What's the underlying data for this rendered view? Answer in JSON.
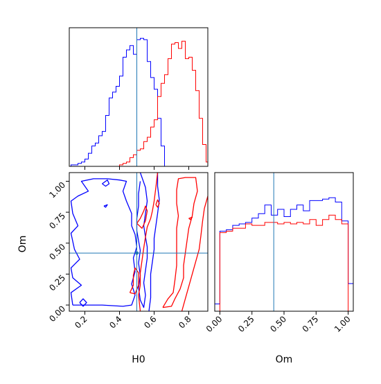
{
  "chart_data": {
    "type": "corner",
    "parameters": [
      "H0",
      "Om"
    ],
    "truths": {
      "H0": 0.5,
      "Om": 0.42
    },
    "colors": {
      "blue": "#0000ff",
      "red": "#ff0000",
      "truth": "#1f77b4"
    },
    "panels": [
      {
        "id": "h0-histogram",
        "type": "step-histogram",
        "xlim": [
          0.11,
          0.91
        ],
        "x_ticks": [
          0.2,
          0.4,
          0.6,
          0.8
        ],
        "x_tick_labels_shown": false,
        "y_ticks_shown": false,
        "y_max": 1.0,
        "series": [
          {
            "color": "blue",
            "edges": [
              0.1,
              0.12,
              0.14,
              0.16,
              0.18,
              0.2,
              0.22,
              0.24,
              0.26,
              0.28,
              0.3,
              0.32,
              0.34,
              0.36,
              0.38,
              0.4,
              0.42,
              0.44,
              0.46,
              0.48,
              0.5,
              0.52,
              0.54,
              0.56,
              0.58,
              0.6,
              0.62,
              0.64,
              0.66,
              0.68
            ],
            "values": [
              0.0,
              0.01,
              0.01,
              0.02,
              0.03,
              0.05,
              0.09,
              0.14,
              0.16,
              0.21,
              0.24,
              0.35,
              0.47,
              0.51,
              0.55,
              0.62,
              0.75,
              0.8,
              0.83,
              0.77,
              0.87,
              0.88,
              0.87,
              0.72,
              0.61,
              0.53,
              0.33,
              0.14,
              0.0
            ]
          },
          {
            "color": "red",
            "edges": [
              0.4,
              0.42,
              0.44,
              0.46,
              0.48,
              0.5,
              0.52,
              0.54,
              0.56,
              0.58,
              0.6,
              0.62,
              0.64,
              0.66,
              0.68,
              0.7,
              0.72,
              0.74,
              0.76,
              0.78,
              0.8,
              0.82,
              0.84,
              0.86,
              0.88,
              0.9,
              0.92
            ],
            "values": [
              0.01,
              0.02,
              0.03,
              0.06,
              0.08,
              0.11,
              0.12,
              0.17,
              0.2,
              0.27,
              0.32,
              0.48,
              0.57,
              0.63,
              0.74,
              0.84,
              0.85,
              0.81,
              0.86,
              0.74,
              0.75,
              0.66,
              0.52,
              0.33,
              0.15,
              0.03
            ]
          }
        ]
      },
      {
        "id": "om-histogram",
        "type": "step-histogram",
        "xlim": [
          -0.04,
          1.04
        ],
        "x_ticks": [
          0.0,
          0.25,
          0.5,
          0.75,
          1.0
        ],
        "x_tick_labels": [
          "0.00",
          "0.25",
          "0.50",
          "0.75",
          "1.00"
        ],
        "x_label": "Om",
        "y_ticks_shown": false,
        "y_max": 1.0,
        "series": [
          {
            "color": "blue",
            "edges": [
              -0.05,
              0.0,
              0.05,
              0.1,
              0.15,
              0.2,
              0.25,
              0.3,
              0.35,
              0.4,
              0.45,
              0.5,
              0.55,
              0.6,
              0.65,
              0.7,
              0.75,
              0.8,
              0.85,
              0.9,
              0.95,
              1.0,
              1.05
            ],
            "values": [
              0.05,
              0.55,
              0.56,
              0.59,
              0.6,
              0.61,
              0.64,
              0.67,
              0.73,
              0.66,
              0.7,
              0.65,
              0.7,
              0.73,
              0.69,
              0.76,
              0.76,
              0.77,
              0.78,
              0.75,
              0.62,
              0.19
            ]
          },
          {
            "color": "red",
            "edges": [
              0.0,
              0.05,
              0.1,
              0.15,
              0.2,
              0.25,
              0.3,
              0.35,
              0.4,
              0.45,
              0.5,
              0.55,
              0.6,
              0.65,
              0.7,
              0.75,
              0.8,
              0.85,
              0.9,
              0.95,
              1.0
            ],
            "values": [
              0.54,
              0.55,
              0.57,
              0.57,
              0.6,
              0.59,
              0.59,
              0.61,
              0.61,
              0.6,
              0.61,
              0.6,
              0.61,
              0.6,
              0.63,
              0.59,
              0.63,
              0.66,
              0.63,
              0.6
            ]
          }
        ]
      },
      {
        "id": "om-vs-h0-contours",
        "type": "contour",
        "xlim": [
          0.11,
          0.91
        ],
        "ylim": [
          -0.05,
          1.07
        ],
        "x_ticks": [
          0.2,
          0.4,
          0.6,
          0.8
        ],
        "x_tick_labels": [
          "0.2",
          "0.4",
          "0.6",
          "0.8"
        ],
        "y_ticks": [
          0.0,
          0.25,
          0.5,
          0.75,
          1.0
        ],
        "y_tick_labels": [
          "0.00",
          "0.25",
          "0.50",
          "0.75",
          "1.00"
        ],
        "x_label": "H0",
        "y_label": "Om",
        "contours": [
          {
            "color": "blue",
            "level": "outer",
            "points": [
              [
                0.13,
                0.0
              ],
              [
                0.3,
                0.0
              ],
              [
                0.42,
                -0.01
              ],
              [
                0.47,
                0.0
              ],
              [
                0.49,
                0.08
              ],
              [
                0.47,
                0.17
              ],
              [
                0.49,
                0.27
              ],
              [
                0.48,
                0.38
              ],
              [
                0.5,
                0.47
              ],
              [
                0.49,
                0.57
              ],
              [
                0.47,
                0.64
              ],
              [
                0.47,
                0.74
              ],
              [
                0.44,
                0.84
              ],
              [
                0.42,
                0.92
              ],
              [
                0.44,
                1.0
              ],
              [
                0.4,
                1.01
              ],
              [
                0.33,
                1.02
              ],
              [
                0.25,
                1.02
              ],
              [
                0.18,
                1.0
              ],
              [
                0.22,
                0.92
              ],
              [
                0.16,
                0.88
              ],
              [
                0.12,
                0.84
              ],
              [
                0.13,
                0.74
              ],
              [
                0.16,
                0.64
              ],
              [
                0.12,
                0.58
              ],
              [
                0.14,
                0.45
              ],
              [
                0.17,
                0.37
              ],
              [
                0.12,
                0.3
              ],
              [
                0.13,
                0.22
              ],
              [
                0.18,
                0.16
              ],
              [
                0.12,
                0.1
              ],
              [
                0.13,
                0.0
              ]
            ]
          },
          {
            "color": "blue",
            "level": "inner",
            "points": [
              [
                0.52,
                1.07
              ],
              [
                0.55,
                0.95
              ],
              [
                0.56,
                0.84
              ],
              [
                0.55,
                0.74
              ],
              [
                0.54,
                0.64
              ],
              [
                0.55,
                0.55
              ],
              [
                0.56,
                0.47
              ],
              [
                0.56,
                0.38
              ],
              [
                0.55,
                0.28
              ],
              [
                0.54,
                0.18
              ],
              [
                0.55,
                0.08
              ],
              [
                0.54,
                -0.02
              ],
              [
                0.52,
                0.04
              ],
              [
                0.51,
                0.14
              ],
              [
                0.52,
                0.24
              ],
              [
                0.51,
                0.34
              ],
              [
                0.52,
                0.44
              ],
              [
                0.51,
                0.52
              ],
              [
                0.5,
                0.6
              ],
              [
                0.5,
                0.7
              ],
              [
                0.51,
                0.8
              ],
              [
                0.51,
                0.9
              ],
              [
                0.52,
                1.0
              ]
            ]
          },
          {
            "color": "blue",
            "level": "right",
            "points": [
              [
                0.62,
                1.07
              ],
              [
                0.62,
                0.96
              ],
              [
                0.63,
                0.85
              ],
              [
                0.62,
                0.74
              ],
              [
                0.61,
                0.64
              ],
              [
                0.6,
                0.54
              ],
              [
                0.6,
                0.45
              ],
              [
                0.59,
                0.35
              ],
              [
                0.58,
                0.25
              ],
              [
                0.58,
                0.15
              ],
              [
                0.58,
                0.06
              ],
              [
                0.57,
                -0.05
              ]
            ]
          },
          {
            "color": "blue",
            "level": "island",
            "points": [
              [
                0.17,
                0.02
              ],
              [
                0.19,
                0.05
              ],
              [
                0.21,
                0.02
              ],
              [
                0.19,
                -0.01
              ],
              [
                0.17,
                0.02
              ]
            ]
          },
          {
            "color": "blue",
            "level": "island",
            "points": [
              [
                0.3,
                0.98
              ],
              [
                0.33,
                1.01
              ],
              [
                0.34,
                0.98
              ],
              [
                0.32,
                0.96
              ],
              [
                0.3,
                0.98
              ]
            ]
          },
          {
            "color": "blue",
            "level": "island",
            "points": [
              [
                0.31,
                0.8
              ],
              [
                0.33,
                0.81
              ],
              [
                0.32,
                0.79
              ],
              [
                0.31,
                0.8
              ]
            ]
          },
          {
            "color": "red",
            "level": "outer",
            "points": [
              [
                0.62,
                1.07
              ],
              [
                0.61,
                0.95
              ],
              [
                0.6,
                0.84
              ],
              [
                0.59,
                0.76
              ],
              [
                0.58,
                0.7
              ],
              [
                0.56,
                0.63
              ],
              [
                0.55,
                0.55
              ],
              [
                0.54,
                0.46
              ],
              [
                0.53,
                0.36
              ],
              [
                0.52,
                0.26
              ],
              [
                0.52,
                0.16
              ],
              [
                0.51,
                0.08
              ],
              [
                0.52,
                -0.05
              ]
            ]
          },
          {
            "color": "red",
            "level": "outer-right",
            "points": [
              [
                0.91,
                0.88
              ],
              [
                0.89,
                0.78
              ],
              [
                0.88,
                0.68
              ],
              [
                0.87,
                0.56
              ],
              [
                0.86,
                0.45
              ],
              [
                0.84,
                0.35
              ],
              [
                0.82,
                0.25
              ],
              [
                0.8,
                0.15
              ],
              [
                0.78,
                0.05
              ],
              [
                0.76,
                -0.05
              ]
            ]
          },
          {
            "color": "red",
            "level": "inner",
            "points": [
              [
                0.65,
                -0.02
              ],
              [
                0.68,
                0.05
              ],
              [
                0.71,
                0.1
              ],
              [
                0.72,
                0.2
              ],
              [
                0.73,
                0.32
              ],
              [
                0.73,
                0.42
              ],
              [
                0.73,
                0.52
              ],
              [
                0.73,
                0.62
              ],
              [
                0.74,
                0.72
              ],
              [
                0.73,
                0.82
              ],
              [
                0.73,
                0.93
              ],
              [
                0.74,
                1.02
              ],
              [
                0.78,
                1.03
              ],
              [
                0.84,
                1.03
              ],
              [
                0.85,
                0.92
              ],
              [
                0.83,
                0.82
              ],
              [
                0.82,
                0.72
              ],
              [
                0.8,
                0.62
              ],
              [
                0.79,
                0.52
              ],
              [
                0.78,
                0.42
              ],
              [
                0.77,
                0.32
              ],
              [
                0.77,
                0.22
              ],
              [
                0.75,
                0.13
              ],
              [
                0.72,
                0.05
              ],
              [
                0.7,
                -0.01
              ],
              [
                0.65,
                -0.02
              ]
            ]
          },
          {
            "color": "red",
            "level": "island",
            "points": [
              [
                0.46,
                0.1
              ],
              [
                0.48,
                0.16
              ],
              [
                0.48,
                0.24
              ],
              [
                0.49,
                0.3
              ],
              [
                0.51,
                0.26
              ],
              [
                0.51,
                0.16
              ],
              [
                0.49,
                0.09
              ],
              [
                0.46,
                0.1
              ]
            ]
          },
          {
            "color": "red",
            "level": "island",
            "points": [
              [
                0.5,
                0.66
              ],
              [
                0.52,
                0.7
              ],
              [
                0.54,
                0.76
              ],
              [
                0.55,
                0.8
              ],
              [
                0.56,
                0.76
              ],
              [
                0.55,
                0.68
              ],
              [
                0.53,
                0.62
              ],
              [
                0.5,
                0.66
              ]
            ]
          },
          {
            "color": "red",
            "level": "island",
            "points": [
              [
                0.61,
                0.81
              ],
              [
                0.62,
                0.85
              ],
              [
                0.63,
                0.82
              ],
              [
                0.62,
                0.79
              ],
              [
                0.61,
                0.81
              ]
            ]
          },
          {
            "color": "red",
            "level": "island",
            "points": [
              [
                0.8,
                0.7
              ],
              [
                0.82,
                0.71
              ],
              [
                0.81,
                0.69
              ],
              [
                0.8,
                0.7
              ]
            ]
          }
        ]
      }
    ]
  }
}
